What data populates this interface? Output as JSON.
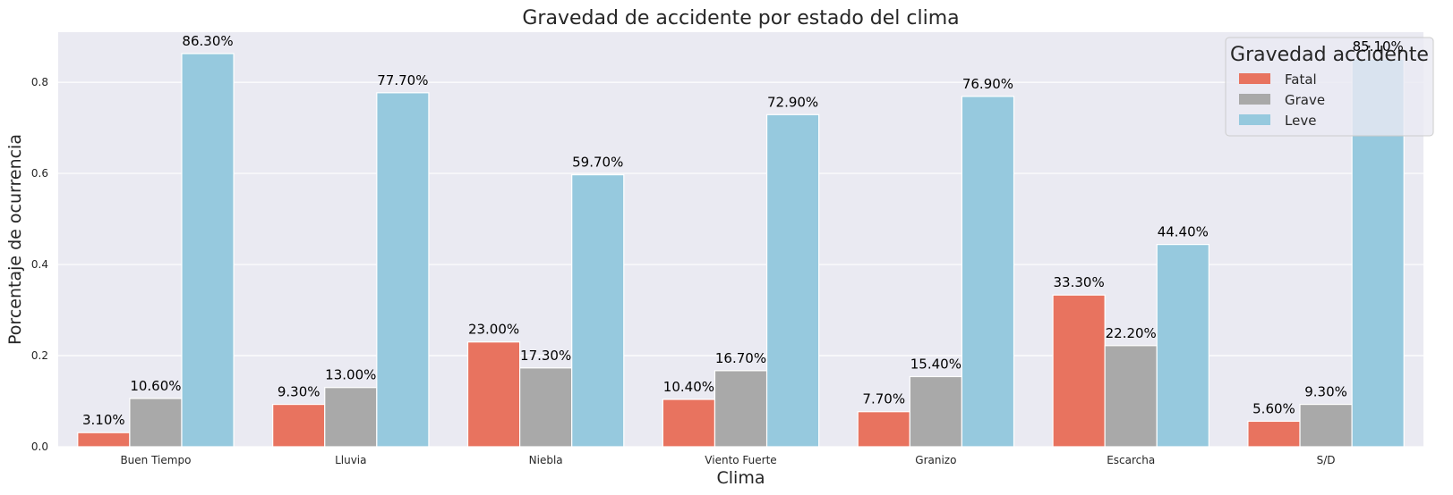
{
  "chart_data": {
    "type": "bar",
    "title": "Gravedad de accidente por estado del clima",
    "xlabel": "Clima",
    "ylabel": "Porcentaje de ocurrencia",
    "categories": [
      "Buen Tiempo",
      "Lluvia",
      "Niebla",
      "Viento Fuerte",
      "Granizo",
      "Escarcha",
      "S/D"
    ],
    "series": [
      {
        "name": "Fatal",
        "color": "#e8735f",
        "values": [
          0.031,
          0.093,
          0.23,
          0.104,
          0.077,
          0.333,
          0.056
        ],
        "labels": [
          "3.10%",
          "9.30%",
          "23.00%",
          "10.40%",
          "7.70%",
          "33.30%",
          "5.60%"
        ]
      },
      {
        "name": "Grave",
        "color": "#a9a9a9",
        "values": [
          0.106,
          0.13,
          0.173,
          0.167,
          0.154,
          0.222,
          0.093
        ],
        "labels": [
          "10.60%",
          "13.00%",
          "17.30%",
          "16.70%",
          "15.40%",
          "22.20%",
          "9.30%"
        ]
      },
      {
        "name": "Leve",
        "color": "#96c9de",
        "values": [
          0.863,
          0.777,
          0.597,
          0.729,
          0.769,
          0.444,
          0.851
        ],
        "labels": [
          "86.30%",
          "77.70%",
          "59.70%",
          "72.90%",
          "76.90%",
          "44.40%",
          "85.10%"
        ]
      }
    ],
    "ylim": [
      0,
      0.91
    ],
    "yticks": [
      0.0,
      0.2,
      0.4,
      0.6,
      0.8
    ],
    "ytick_labels": [
      "0.0",
      "0.2",
      "0.4",
      "0.6",
      "0.8"
    ],
    "grid": true,
    "legend": {
      "title": "Gravedad accidente",
      "position": "top-right"
    },
    "plot_background": "#eaeaf2",
    "grid_color": "#ffffff"
  }
}
